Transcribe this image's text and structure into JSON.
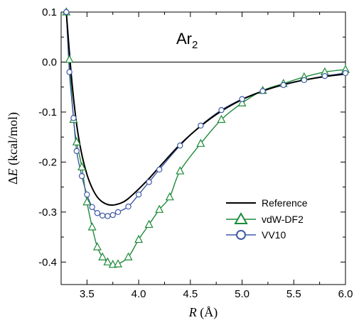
{
  "chart_data": {
    "type": "line",
    "annotation": {
      "main": "Ar",
      "subscript": "2"
    },
    "xlabel": {
      "italic": "R",
      "rest": " (Å)"
    },
    "ylabel": {
      "greek": "Δ",
      "italic": "E",
      "rest": " (kcal/mol)"
    },
    "xlim": [
      3.25,
      6.0
    ],
    "ylim": [
      -0.445,
      0.1
    ],
    "x_ticks": [
      3.5,
      4.0,
      4.5,
      5.0,
      5.5,
      6.0
    ],
    "x_tick_labels": [
      "3.5",
      "4.0",
      "4.5",
      "5.0",
      "5.5",
      "6.0"
    ],
    "y_ticks": [
      0.1,
      0.0,
      -0.1,
      -0.2,
      -0.3,
      -0.4
    ],
    "y_tick_labels": [
      "0.1",
      "0.0",
      "-0.1",
      "-0.2",
      "-0.3",
      "-0.4"
    ],
    "zero_line": true,
    "grid": false,
    "legend_position": "lower-right",
    "series": [
      {
        "name": "Reference",
        "color": "#000000",
        "marker": "none",
        "x": [
          3.3,
          3.35,
          3.4,
          3.45,
          3.5,
          3.55,
          3.6,
          3.65,
          3.7,
          3.75,
          3.8,
          3.85,
          3.9,
          4.0,
          4.1,
          4.2,
          4.4,
          4.6,
          4.8,
          5.0,
          5.2,
          5.4,
          5.6,
          5.8,
          6.0
        ],
        "values": [
          0.1,
          -0.03,
          -0.125,
          -0.185,
          -0.225,
          -0.252,
          -0.27,
          -0.28,
          -0.285,
          -0.286,
          -0.284,
          -0.28,
          -0.273,
          -0.254,
          -0.233,
          -0.21,
          -0.165,
          -0.128,
          -0.098,
          -0.075,
          -0.058,
          -0.045,
          -0.036,
          -0.029,
          -0.024
        ]
      },
      {
        "name": "vdW-DF2",
        "color": "#1e8a3a",
        "marker": "triangle",
        "x": [
          3.3,
          3.33,
          3.37,
          3.4,
          3.45,
          3.5,
          3.55,
          3.6,
          3.65,
          3.7,
          3.75,
          3.8,
          3.9,
          4.0,
          4.1,
          4.2,
          4.3,
          4.4,
          4.6,
          4.8,
          5.0,
          5.2,
          5.4,
          5.6,
          5.8,
          6.0
        ],
        "values": [
          0.1,
          0.005,
          -0.115,
          -0.16,
          -0.21,
          -0.28,
          -0.33,
          -0.37,
          -0.39,
          -0.4,
          -0.405,
          -0.404,
          -0.39,
          -0.355,
          -0.325,
          -0.295,
          -0.27,
          -0.218,
          -0.163,
          -0.115,
          -0.082,
          -0.057,
          -0.043,
          -0.03,
          -0.02,
          -0.015
        ]
      },
      {
        "name": "VV10",
        "color": "#3f5aa6",
        "marker": "circle",
        "x": [
          3.3,
          3.33,
          3.37,
          3.4,
          3.45,
          3.5,
          3.55,
          3.6,
          3.65,
          3.7,
          3.75,
          3.8,
          3.9,
          4.0,
          4.1,
          4.2,
          4.4,
          4.6,
          4.8,
          5.0,
          5.2,
          5.4,
          5.6,
          5.8,
          6.0
        ],
        "values": [
          0.1,
          -0.02,
          -0.112,
          -0.178,
          -0.228,
          -0.265,
          -0.29,
          -0.302,
          -0.307,
          -0.308,
          -0.306,
          -0.3,
          -0.289,
          -0.265,
          -0.24,
          -0.215,
          -0.167,
          -0.127,
          -0.096,
          -0.074,
          -0.058,
          -0.046,
          -0.036,
          -0.028,
          -0.022
        ]
      }
    ]
  }
}
